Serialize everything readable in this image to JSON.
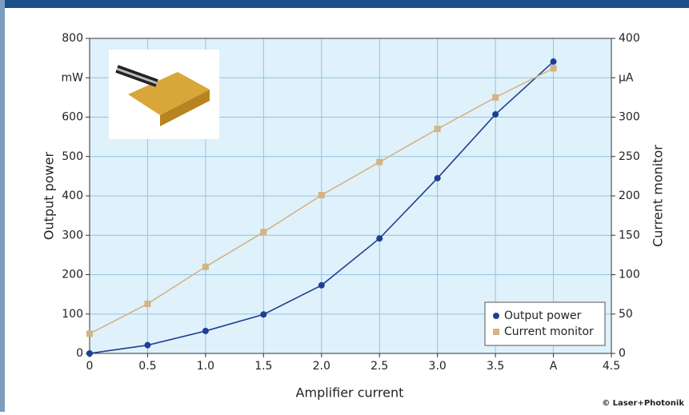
{
  "chart_data": {
    "type": "line",
    "x": [
      0,
      0.5,
      1,
      1.5,
      2,
      2.5,
      3,
      3.5,
      4
    ],
    "series": [
      {
        "name": "Output power",
        "color": "#1f3f93",
        "marker": "circle",
        "values": [
          0,
          21,
          57,
          99,
          173,
          292,
          445,
          607,
          741
        ]
      },
      {
        "name": "Current monitor",
        "color": "#d4b483",
        "marker": "square",
        "axis": "y2",
        "values": [
          25,
          63,
          110,
          154,
          201,
          243,
          285,
          325,
          362
        ]
      }
    ],
    "xlabel": "Amplifier current",
    "ylabel": "Output power",
    "y2label": "Current monitor",
    "xlim": [
      0,
      4.5
    ],
    "xticks": [
      0,
      0.5,
      {
        "value": 1,
        "label": "1.0"
      },
      1.5,
      {
        "value": 2,
        "label": "2.0"
      },
      2.5,
      {
        "value": 3,
        "label": "3.0"
      },
      3.5,
      {
        "value": 4,
        "label": "A"
      },
      4.5
    ],
    "ylim": [
      0,
      800
    ],
    "yticks": [
      0,
      100,
      200,
      300,
      400,
      500,
      600,
      {
        "value": 700,
        "label": "mW"
      },
      800
    ],
    "y2lim": [
      0,
      400
    ],
    "y2ticks": [
      0,
      50,
      100,
      150,
      200,
      250,
      300,
      {
        "value": 350,
        "label": "µA"
      },
      400
    ],
    "grid": true,
    "legend": "lower right",
    "credit": "© Laser+Photonik"
  }
}
